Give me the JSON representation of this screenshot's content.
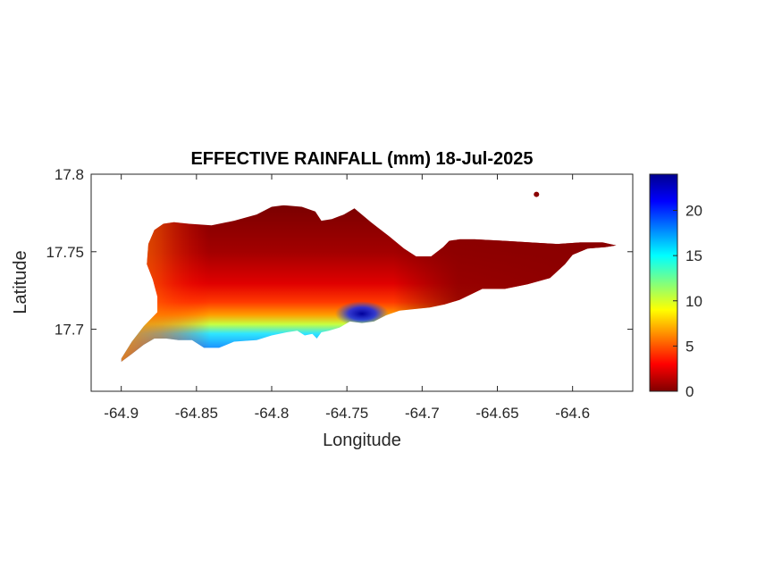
{
  "chart_data": {
    "type": "heatmap",
    "title": "EFFECTIVE RAINFALL (mm) 18-Jul-2025",
    "xlabel": "Longitude",
    "ylabel": "Latitude",
    "xlim": [
      -64.92,
      -64.56
    ],
    "ylim": [
      17.66,
      17.8
    ],
    "x_ticks": [
      -64.9,
      -64.85,
      -64.8,
      -64.75,
      -64.7,
      -64.65,
      -64.6
    ],
    "x_tick_labels": [
      "-64.9",
      "-64.85",
      "-64.8",
      "-64.75",
      "-64.7",
      "-64.65",
      "-64.6"
    ],
    "y_ticks": [
      17.7,
      17.75,
      17.8
    ],
    "y_tick_labels": [
      "17.7",
      "17.75",
      "17.8"
    ],
    "colorbar": {
      "colormap": "jet",
      "clim": [
        0,
        24
      ],
      "ticks": [
        0,
        5,
        10,
        15,
        20
      ],
      "tick_labels": [
        "0",
        "5",
        "10",
        "15",
        "20"
      ]
    },
    "field_summary": {
      "north_coast_value": 0,
      "central_band_value": 6,
      "south_coast_value": 15,
      "peak_value": 24,
      "peak_location": [
        -64.74,
        17.71
      ]
    },
    "island_outline": [
      [
        -64.9,
        17.679
      ],
      [
        -64.893,
        17.684
      ],
      [
        -64.885,
        17.69
      ],
      [
        -64.878,
        17.694
      ],
      [
        -64.87,
        17.694
      ],
      [
        -64.862,
        17.693
      ],
      [
        -64.853,
        17.693
      ],
      [
        -64.845,
        17.688
      ],
      [
        -64.835,
        17.688
      ],
      [
        -64.825,
        17.692
      ],
      [
        -64.81,
        17.693
      ],
      [
        -64.8,
        17.696
      ],
      [
        -64.79,
        17.698
      ],
      [
        -64.783,
        17.699
      ],
      [
        -64.778,
        17.696
      ],
      [
        -64.773,
        17.697
      ],
      [
        -64.77,
        17.694
      ],
      [
        -64.767,
        17.698
      ],
      [
        -64.762,
        17.699
      ],
      [
        -64.755,
        17.701
      ],
      [
        -64.748,
        17.705
      ],
      [
        -64.74,
        17.704
      ],
      [
        -64.732,
        17.705
      ],
      [
        -64.724,
        17.709
      ],
      [
        -64.715,
        17.712
      ],
      [
        -64.705,
        17.713
      ],
      [
        -64.695,
        17.714
      ],
      [
        -64.685,
        17.716
      ],
      [
        -64.675,
        17.719
      ],
      [
        -64.66,
        17.726
      ],
      [
        -64.645,
        17.726
      ],
      [
        -64.63,
        17.729
      ],
      [
        -64.615,
        17.733
      ],
      [
        -64.605,
        17.742
      ],
      [
        -64.6,
        17.748
      ],
      [
        -64.59,
        17.752
      ],
      [
        -64.578,
        17.753
      ],
      [
        -64.571,
        17.754
      ],
      [
        -64.58,
        17.756
      ],
      [
        -64.595,
        17.756
      ],
      [
        -64.61,
        17.755
      ],
      [
        -64.628,
        17.756
      ],
      [
        -64.645,
        17.757
      ],
      [
        -64.665,
        17.758
      ],
      [
        -64.675,
        17.758
      ],
      [
        -64.682,
        17.757
      ],
      [
        -64.686,
        17.753
      ],
      [
        -64.694,
        17.747
      ],
      [
        -64.704,
        17.747
      ],
      [
        -64.712,
        17.752
      ],
      [
        -64.722,
        17.76
      ],
      [
        -64.734,
        17.769
      ],
      [
        -64.745,
        17.778
      ],
      [
        -64.752,
        17.774
      ],
      [
        -64.76,
        17.771
      ],
      [
        -64.767,
        17.77
      ],
      [
        -64.771,
        17.776
      ],
      [
        -64.78,
        17.779
      ],
      [
        -64.792,
        17.78
      ],
      [
        -64.8,
        17.779
      ],
      [
        -64.81,
        17.774
      ],
      [
        -64.825,
        17.77
      ],
      [
        -64.84,
        17.767
      ],
      [
        -64.855,
        17.768
      ],
      [
        -64.865,
        17.769
      ],
      [
        -64.872,
        17.768
      ],
      [
        -64.878,
        17.764
      ],
      [
        -64.882,
        17.755
      ],
      [
        -64.883,
        17.742
      ],
      [
        -64.879,
        17.732
      ],
      [
        -64.876,
        17.721
      ],
      [
        -64.876,
        17.711
      ],
      [
        -64.885,
        17.702
      ],
      [
        -64.893,
        17.692
      ],
      [
        -64.9,
        17.681
      ]
    ],
    "islet": [
      -64.624,
      17.787
    ]
  }
}
